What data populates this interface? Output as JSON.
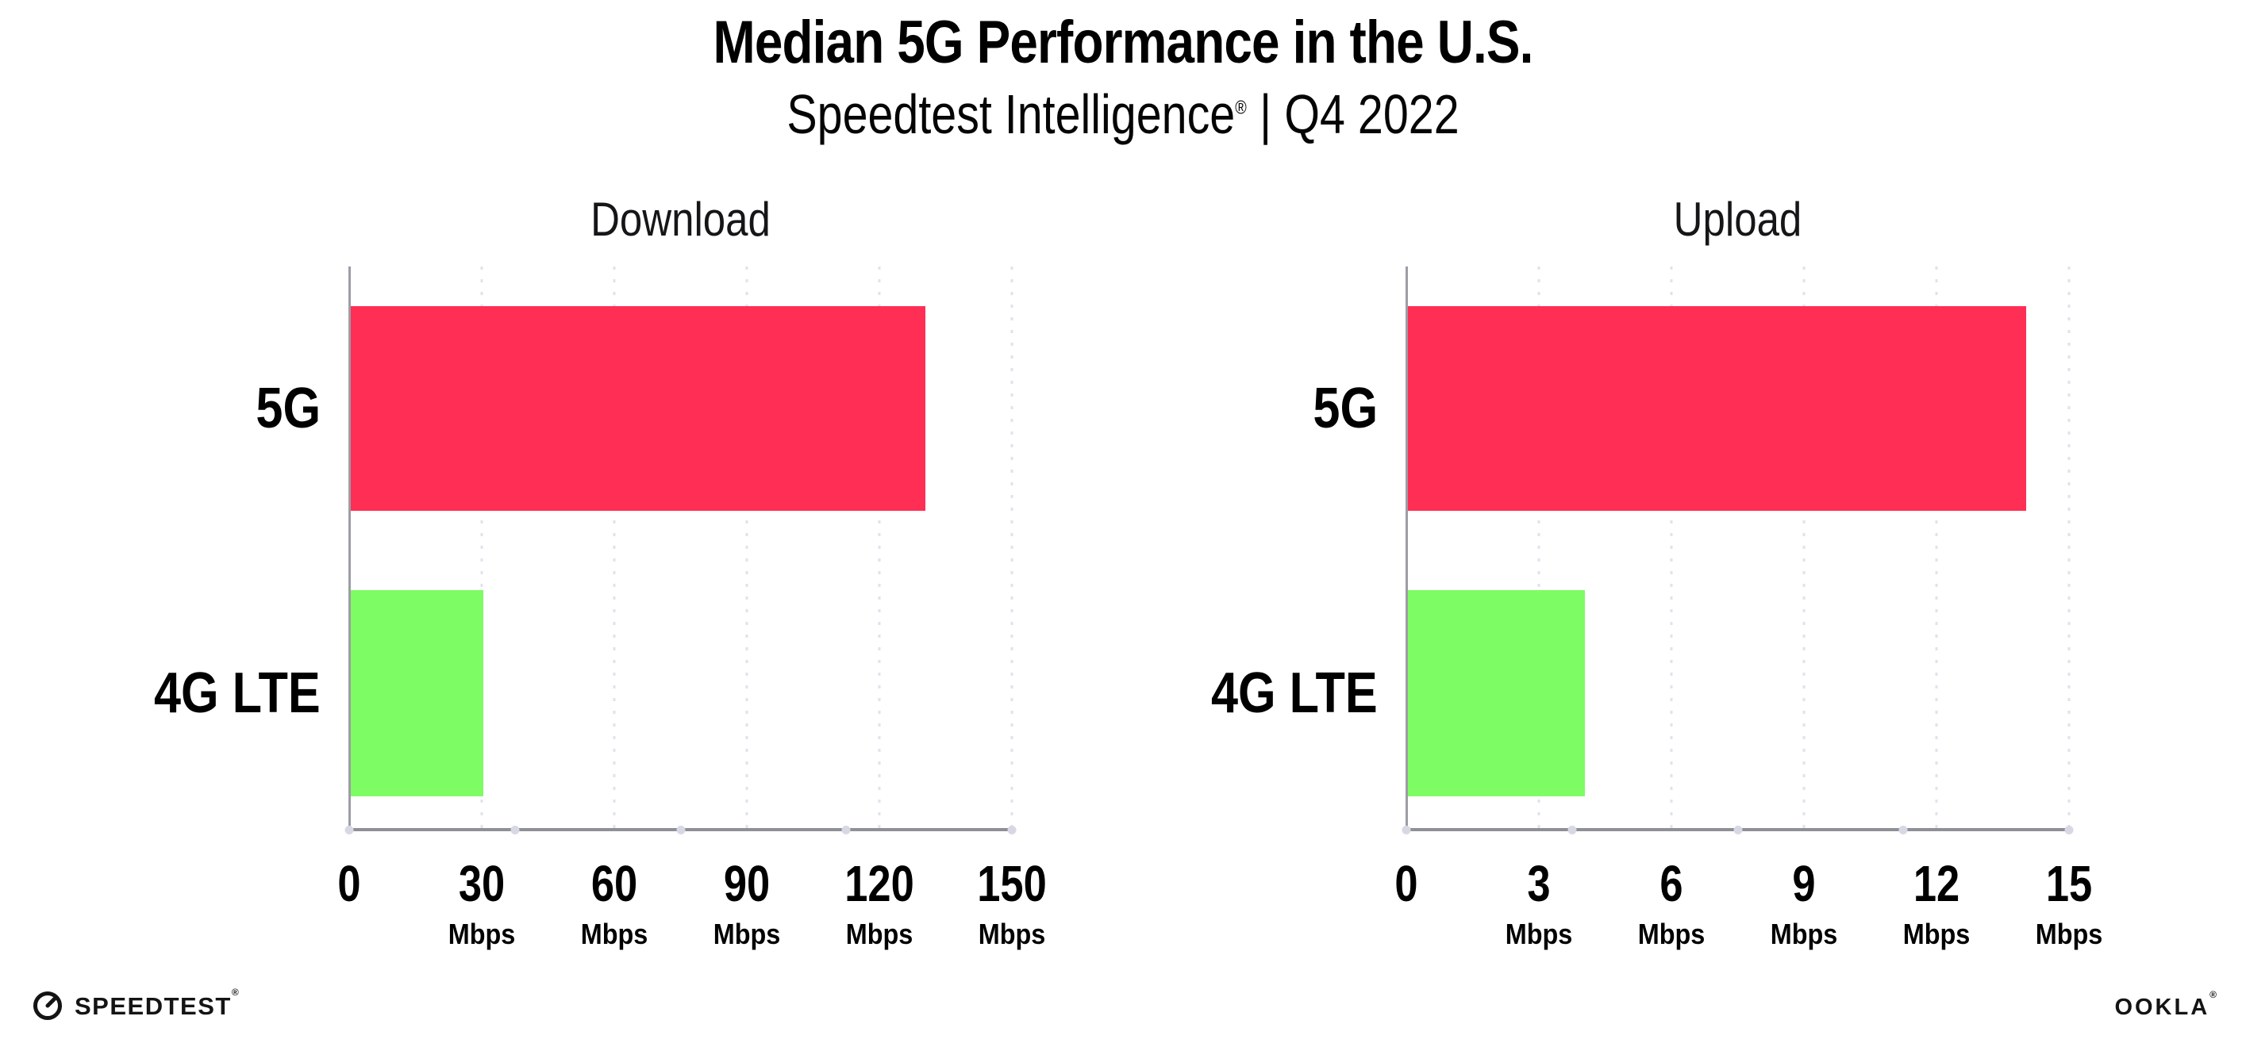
{
  "header": {
    "title": "Median 5G Performance in the U.S.",
    "subtitle_brand": "Speedtest Intelligence",
    "subtitle_registered": "®",
    "subtitle_separator": "|",
    "subtitle_period": "Q4 2022"
  },
  "colors": {
    "bar_5g": "#ff2e55",
    "bar_4g_lte": "#7efc64",
    "axis": "#8f8f97",
    "gridline_dots": "#e2e2ec",
    "axis_marker_dots": "#d8d8e4",
    "text": "#000000"
  },
  "chart_data": [
    {
      "type": "bar",
      "orientation": "horizontal",
      "title": "Download",
      "categories": [
        "5G",
        "4G LTE"
      ],
      "values": [
        130,
        30
      ],
      "unit": "Mbps",
      "xlim": [
        0,
        150
      ],
      "xticks": [
        0,
        30,
        60,
        90,
        120,
        150
      ],
      "tick_unit": "Mbps",
      "bar_colors": [
        "#ff2e55",
        "#7efc64"
      ],
      "grid": "vertical-dotted",
      "legend": "none"
    },
    {
      "type": "bar",
      "orientation": "horizontal",
      "title": "Upload",
      "categories": [
        "5G",
        "4G LTE"
      ],
      "values": [
        14,
        4
      ],
      "unit": "Mbps",
      "xlim": [
        0,
        15
      ],
      "xticks": [
        0,
        3,
        6,
        9,
        12,
        15
      ],
      "tick_unit": "Mbps",
      "bar_colors": [
        "#ff2e55",
        "#7efc64"
      ],
      "grid": "vertical-dotted",
      "legend": "none"
    }
  ],
  "footer": {
    "speedtest_label": "SPEEDTEST",
    "speedtest_mark": "®",
    "ookla_label": "OOKLA",
    "ookla_mark": "®"
  }
}
